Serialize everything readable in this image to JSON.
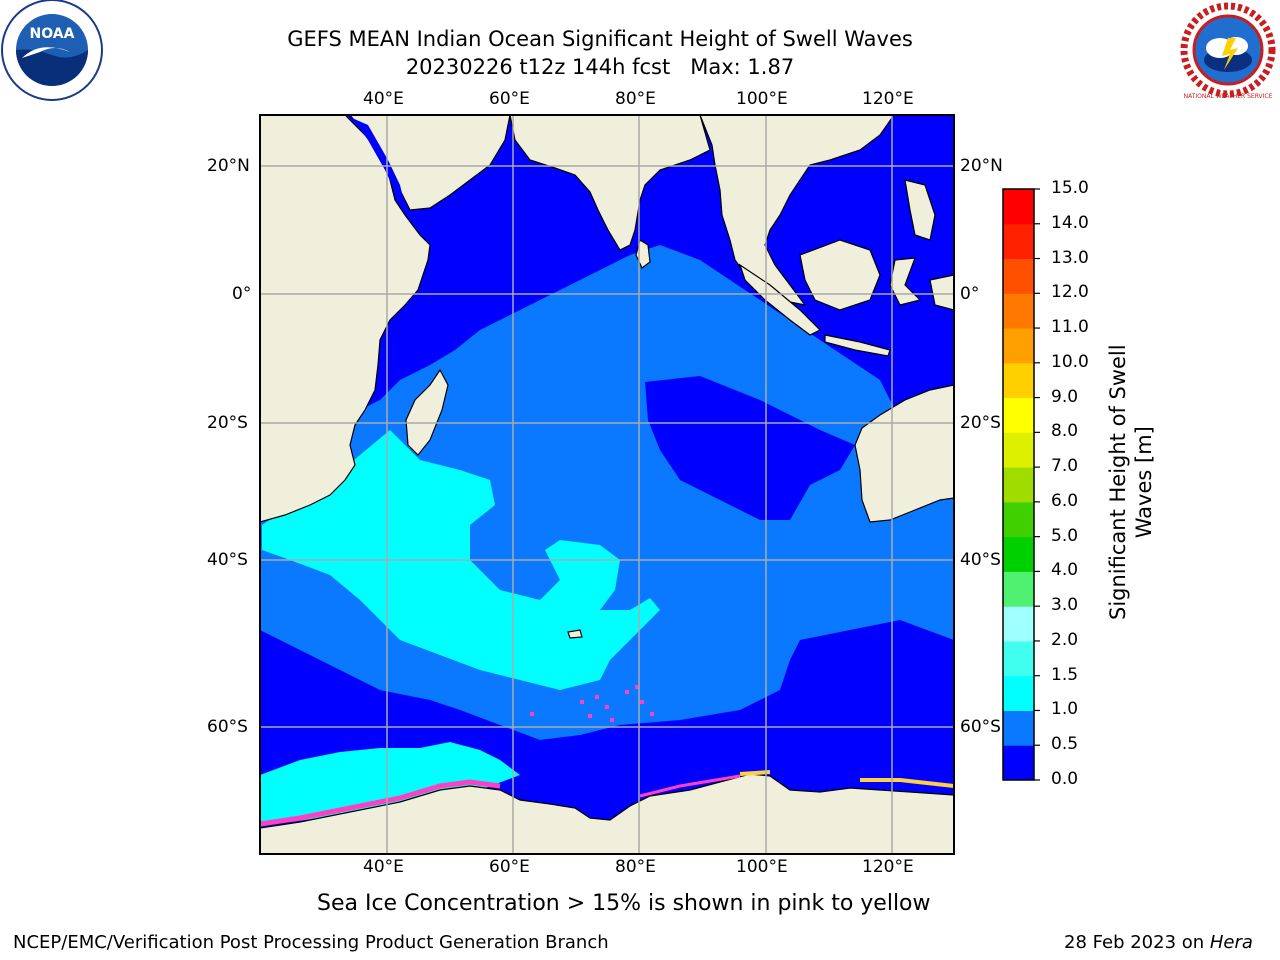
{
  "title": {
    "line1": "GEFS MEAN Indian Ocean Significant Height of Swell Waves",
    "line2": "20230226 t12z 144h fcst",
    "max_label": "Max: 1.87"
  },
  "axes": {
    "lon_labels": [
      "40°E",
      "60°E",
      "80°E",
      "100°E",
      "120°E"
    ],
    "lat_labels": [
      "20°N",
      "0°",
      "20°S",
      "40°S",
      "60°S"
    ]
  },
  "colorbar": {
    "label_line1": "Significant Height of Swell",
    "label_line2": "Waves [m]",
    "ticks": [
      "0.0",
      "0.5",
      "1.0",
      "1.5",
      "2.0",
      "3.0",
      "4.0",
      "5.0",
      "6.0",
      "7.0",
      "8.0",
      "9.0",
      "10.0",
      "11.0",
      "12.0",
      "13.0",
      "14.0",
      "15.0"
    ],
    "colors": [
      "#0000ff",
      "#0a78ff",
      "#00ffff",
      "#40ffee",
      "#a0ffff",
      "#50f070",
      "#00d000",
      "#40d000",
      "#a0dc00",
      "#dcf000",
      "#ffff00",
      "#ffd000",
      "#ffa000",
      "#ff7800",
      "#ff5000",
      "#ff2000",
      "#ff0000"
    ]
  },
  "colors": {
    "land": "#efefdc",
    "ocean_low": "#0000ff",
    "ocean_mid": "#0a78ff",
    "ocean_high": "#00ffff",
    "sea_ice": "#ff40c0",
    "grid": "#aaaaaa"
  },
  "caption": "Sea Ice Concentration > 15% is shown in pink to yellow",
  "footer": {
    "left": "NCEP/EMC/Verification Post Processing Product Generation Branch",
    "right_prefix": "28 Feb 2023 on ",
    "right_italic": "Hera"
  },
  "logos": {
    "noaa_text": "NOAA",
    "nws_text": "NATIONAL WEATHER SERVICE"
  }
}
